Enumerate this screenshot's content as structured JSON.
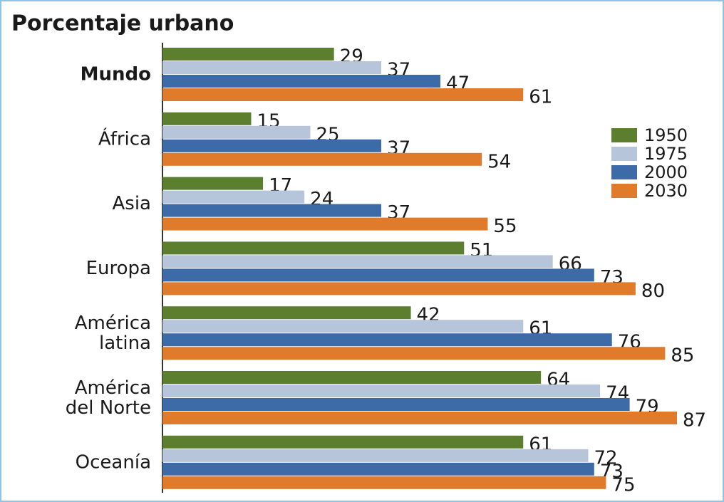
{
  "chart_data": {
    "type": "bar",
    "orientation": "horizontal",
    "title": "Porcentaje urbano",
    "categories": [
      "Mundo",
      "África",
      "Asia",
      "Europa",
      "América latina",
      "América del Norte",
      "Oceanía"
    ],
    "series": [
      {
        "name": "1950",
        "color": "#5b7f2f",
        "values": [
          29,
          15,
          17,
          51,
          42,
          64,
          61
        ]
      },
      {
        "name": "1975",
        "color": "#b6c5d9",
        "values": [
          37,
          25,
          24,
          66,
          61,
          74,
          72
        ]
      },
      {
        "name": "2000",
        "color": "#3c6ba8",
        "values": [
          47,
          37,
          37,
          73,
          76,
          79,
          73
        ]
      },
      {
        "name": "2030",
        "color": "#e07b2b",
        "values": [
          61,
          54,
          55,
          80,
          85,
          87,
          75
        ]
      }
    ],
    "legend": "right"
  }
}
